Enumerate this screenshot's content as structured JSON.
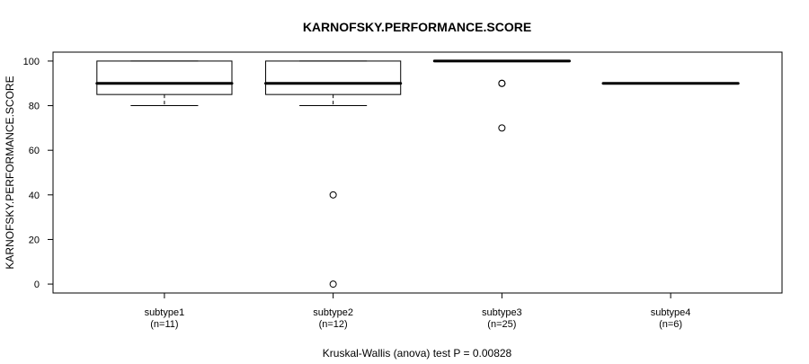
{
  "chart_data": {
    "type": "box",
    "title": "KARNOFSKY.PERFORMANCE.SCORE",
    "ylabel": "KARNOFSKY.PERFORMANCE.SCORE",
    "xlabel": "",
    "footer": "Kruskal-Wallis (anova) test P = 0.00828",
    "ylim": [
      0,
      100
    ],
    "yticks": [
      0,
      20,
      40,
      60,
      80,
      100
    ],
    "grid": false,
    "categories": [
      "subtype1",
      "subtype2",
      "subtype3",
      "subtype4"
    ],
    "counts": [
      "(n=11)",
      "(n=12)",
      "(n=25)",
      "(n=6)"
    ],
    "boxes": [
      {
        "whisker_low": 80,
        "q1": 85,
        "median": 90,
        "q3": 100,
        "whisker_high": 100,
        "outliers": []
      },
      {
        "whisker_low": 80,
        "q1": 85,
        "median": 90,
        "q3": 100,
        "whisker_high": 100,
        "outliers": [
          40,
          0
        ]
      },
      {
        "whisker_low": 100,
        "q1": 100,
        "median": 100,
        "q3": 100,
        "whisker_high": 100,
        "outliers": [
          90,
          90,
          70
        ]
      },
      {
        "whisker_low": 90,
        "q1": 90,
        "median": 90,
        "q3": 90,
        "whisker_high": 90,
        "outliers": []
      }
    ]
  }
}
